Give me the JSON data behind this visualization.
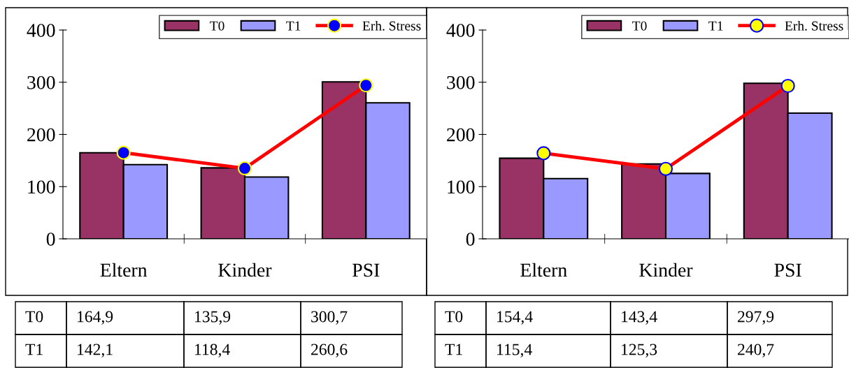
{
  "chart_data": [
    {
      "type": "bar",
      "categories": [
        "Eltern",
        "Kinder",
        "PSI"
      ],
      "ylim": [
        0,
        400
      ],
      "yticks": [
        0,
        100,
        200,
        300,
        400
      ],
      "legend": "top right",
      "grid": false,
      "series": [
        {
          "name": "T0",
          "color": "#993366",
          "values": [
            164.9,
            135.9,
            300.7
          ],
          "value_labels": [
            "164,9",
            "135,9",
            "300,7"
          ]
        },
        {
          "name": "T1",
          "color": "#9999ff",
          "values": [
            142.1,
            118.4,
            260.6
          ],
          "value_labels": [
            "142,1",
            "118,4",
            "260,6"
          ]
        },
        {
          "name": "Erh. Stress",
          "type": "line",
          "color": "#ff0000",
          "marker": "circle",
          "values": [
            165,
            135,
            294
          ]
        }
      ]
    },
    {
      "type": "bar",
      "categories": [
        "Eltern",
        "Kinder",
        "PSI"
      ],
      "ylim": [
        0,
        400
      ],
      "yticks": [
        0,
        100,
        200,
        300,
        400
      ],
      "legend": "top right",
      "grid": false,
      "series": [
        {
          "name": "T0",
          "color": "#993366",
          "values": [
            154.4,
            143.4,
            297.9
          ],
          "value_labels": [
            "154,4",
            "143,4",
            "297,9"
          ]
        },
        {
          "name": "T1",
          "color": "#9999ff",
          "values": [
            115.4,
            125.3,
            240.7
          ],
          "value_labels": [
            "115,4",
            "125,3",
            "240,7"
          ]
        },
        {
          "name": "Erh. Stress",
          "type": "line",
          "color": "#ff0000",
          "marker": "circle",
          "values": [
            164,
            134,
            293
          ]
        }
      ]
    }
  ]
}
